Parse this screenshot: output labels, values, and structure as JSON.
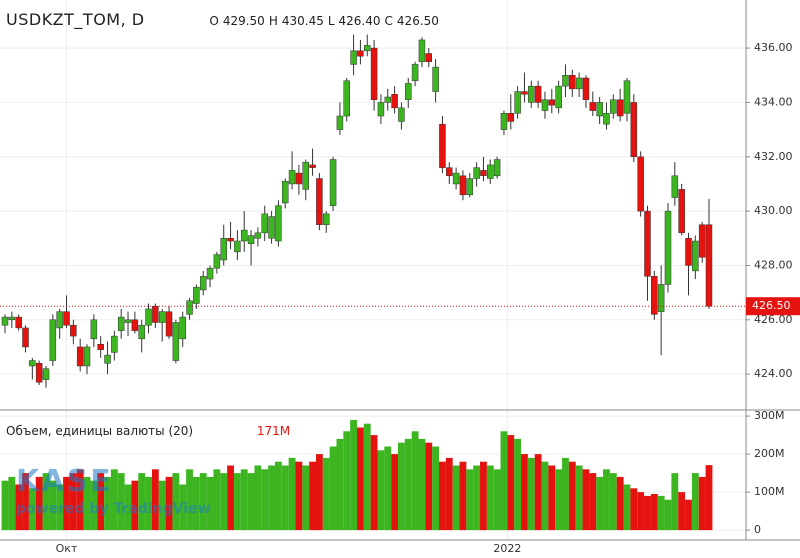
{
  "chart_data": {
    "type": "candlestick",
    "title": "USDKZT_TOM, D",
    "ohlc_legend": [
      {
        "key": "O",
        "text": "429.50"
      },
      {
        "key": "H",
        "text": "430.45"
      },
      {
        "key": "L",
        "text": "426.40"
      },
      {
        "key": "C",
        "text": "426.50"
      }
    ],
    "open": [
      425.8,
      426.0,
      426.1,
      425.7,
      424.3,
      424.4,
      423.8,
      424.5,
      425.7,
      426.3,
      425.8,
      425.0,
      424.3,
      425.3,
      425.1,
      424.4,
      424.8,
      425.6,
      425.9,
      426.0,
      425.3,
      425.8,
      426.5,
      425.9,
      426.3,
      424.5,
      425.3,
      426.2,
      426.6,
      427.1,
      427.5,
      427.9,
      428.2,
      429.0,
      428.5,
      428.9,
      428.8,
      429.0,
      429.2,
      429.0,
      428.9,
      430.3,
      431.0,
      431.4,
      430.8,
      431.7,
      431.2,
      429.5,
      430.2,
      433.0,
      433.5,
      435.4,
      435.9,
      435.9,
      436.0,
      433.5,
      434.0,
      434.3,
      433.3,
      434.1,
      434.8,
      435.5,
      435.8,
      434.4,
      433.2,
      431.6,
      431.0,
      431.3,
      430.6,
      431.2,
      431.5,
      431.2,
      431.3,
      433.0,
      433.6,
      433.6,
      434.4,
      434.0,
      434.6,
      433.7,
      434.1,
      433.8,
      434.6,
      435.0,
      434.5,
      434.9,
      434.0,
      433.5,
      433.2,
      433.6,
      434.1,
      433.6,
      434.0,
      432.0,
      430.0,
      427.6,
      426.3,
      427.3,
      430.5,
      430.8,
      429.0,
      427.8,
      429.5,
      429.5
    ],
    "high": [
      426.2,
      426.3,
      426.2,
      425.8,
      424.6,
      424.5,
      424.3,
      426.2,
      426.4,
      426.9,
      426.0,
      425.3,
      425.1,
      426.2,
      425.4,
      425.2,
      425.6,
      426.4,
      426.3,
      426.3,
      426.0,
      426.6,
      426.6,
      426.4,
      426.5,
      426.0,
      426.3,
      426.8,
      427.3,
      427.8,
      428.0,
      428.5,
      429.5,
      429.6,
      429.3,
      430.0,
      429.3,
      429.4,
      430.2,
      430.0,
      430.4,
      431.2,
      432.2,
      431.7,
      431.9,
      432.3,
      431.4,
      430.0,
      432.0,
      434.0,
      434.9,
      436.5,
      436.3,
      436.5,
      436.3,
      434.3,
      434.5,
      434.6,
      434.0,
      434.9,
      435.5,
      436.4,
      436.0,
      435.6,
      433.5,
      431.8,
      431.6,
      431.5,
      431.4,
      431.8,
      432.0,
      431.9,
      432.0,
      433.7,
      434.3,
      434.6,
      435.1,
      434.8,
      434.8,
      434.4,
      434.5,
      434.8,
      435.4,
      435.2,
      435.1,
      435.0,
      434.4,
      434.2,
      434.0,
      434.3,
      434.5,
      434.9,
      434.3,
      432.2,
      430.2,
      427.8,
      428.0,
      430.3,
      431.8,
      431.0,
      429.2,
      429.1,
      429.6,
      430.45
    ],
    "low": [
      425.5,
      425.7,
      425.6,
      424.8,
      423.8,
      423.6,
      423.5,
      424.3,
      425.3,
      425.7,
      425.1,
      424.1,
      424.0,
      425.0,
      424.6,
      424.0,
      424.5,
      425.3,
      425.4,
      425.5,
      424.8,
      425.5,
      425.7,
      425.2,
      425.3,
      424.4,
      425.0,
      426.0,
      426.4,
      426.9,
      427.2,
      427.7,
      428.0,
      428.6,
      428.2,
      428.5,
      428.0,
      428.7,
      428.9,
      428.8,
      428.7,
      430.1,
      430.8,
      430.6,
      430.4,
      431.3,
      429.3,
      429.2,
      430.0,
      432.8,
      433.3,
      435.0,
      435.4,
      435.7,
      433.7,
      433.2,
      433.7,
      433.6,
      433.0,
      433.8,
      434.6,
      435.3,
      435.3,
      434.0,
      431.4,
      431.0,
      430.8,
      430.4,
      430.5,
      430.9,
      431.1,
      431.0,
      431.2,
      432.8,
      433.0,
      433.4,
      434.0,
      433.8,
      433.8,
      433.4,
      433.6,
      433.6,
      434.2,
      434.2,
      434.2,
      433.8,
      433.5,
      433.2,
      433.0,
      433.4,
      433.3,
      433.3,
      431.8,
      429.8,
      426.7,
      426.0,
      424.7,
      427.0,
      430.2,
      429.1,
      426.9,
      427.5,
      428.1,
      426.4
    ],
    "close": [
      426.1,
      426.1,
      425.7,
      425.0,
      424.5,
      423.7,
      424.2,
      426.0,
      426.3,
      425.8,
      425.4,
      424.3,
      425.0,
      426.0,
      424.9,
      424.7,
      425.4,
      426.1,
      426.0,
      425.6,
      425.8,
      426.4,
      425.9,
      426.3,
      425.4,
      425.9,
      426.1,
      426.7,
      427.2,
      427.6,
      427.9,
      428.4,
      429.0,
      428.9,
      428.9,
      429.3,
      429.1,
      429.2,
      429.9,
      429.8,
      430.2,
      431.1,
      431.5,
      431.0,
      431.8,
      431.6,
      429.5,
      429.9,
      431.9,
      433.5,
      434.8,
      435.9,
      435.7,
      436.1,
      434.1,
      434.0,
      434.2,
      433.8,
      433.8,
      434.7,
      435.4,
      436.3,
      435.5,
      435.3,
      431.6,
      431.3,
      431.4,
      430.6,
      431.2,
      431.6,
      431.3,
      431.7,
      431.9,
      433.6,
      433.3,
      434.4,
      434.3,
      434.6,
      434.0,
      434.1,
      433.9,
      434.6,
      435.0,
      434.5,
      434.9,
      434.1,
      433.7,
      434.0,
      433.6,
      434.1,
      433.5,
      434.8,
      432.0,
      430.0,
      427.6,
      426.2,
      427.3,
      430.0,
      431.3,
      429.2,
      428.0,
      428.9,
      428.3,
      426.5
    ],
    "up_color": "#3cb521",
    "down_color": "#e5130f",
    "ylim": [
      422.68,
      437.77
    ],
    "yticks": [
      {
        "value": 424,
        "label": "424.00"
      },
      {
        "value": 426,
        "label": "426.00"
      },
      {
        "value": 428,
        "label": "428.00"
      },
      {
        "value": 430,
        "label": "430.00"
      },
      {
        "value": 432,
        "label": "432.00"
      },
      {
        "value": 434,
        "label": "434.00"
      },
      {
        "value": 436,
        "label": "436.00"
      }
    ],
    "last_price_label": "426.50",
    "xticks": [
      {
        "value": 9,
        "label": "Окт"
      },
      {
        "value": 73.5,
        "label": "2022"
      }
    ],
    "grid": true,
    "volume": {
      "title": "Объем, единицы валюты (20)",
      "value_label": "171M",
      "values": [
        130,
        140,
        120,
        150,
        110,
        140,
        150,
        130,
        120,
        140,
        150,
        160,
        140,
        130,
        150,
        140,
        160,
        150,
        120,
        130,
        150,
        140,
        160,
        130,
        140,
        150,
        120,
        160,
        140,
        150,
        140,
        160,
        150,
        170,
        150,
        160,
        150,
        170,
        160,
        170,
        180,
        170,
        190,
        180,
        170,
        180,
        200,
        190,
        220,
        240,
        260,
        290,
        270,
        280,
        250,
        210,
        220,
        200,
        230,
        240,
        260,
        240,
        230,
        220,
        180,
        190,
        170,
        180,
        160,
        170,
        180,
        170,
        160,
        260,
        250,
        240,
        200,
        190,
        200,
        180,
        170,
        160,
        190,
        180,
        170,
        160,
        150,
        140,
        160,
        150,
        140,
        120,
        110,
        100,
        90,
        95,
        90,
        80,
        150,
        100,
        80,
        150,
        140,
        171
      ],
      "ylim": [
        -26,
        316
      ],
      "yticks": [
        0,
        {
          "value": 100,
          "label": "100M"
        },
        {
          "value": 200,
          "label": "200M"
        },
        {
          "value": 300,
          "label": "300M"
        }
      ]
    },
    "watermark": {
      "logo": "KASE",
      "powered": "powered by TradingView"
    }
  }
}
